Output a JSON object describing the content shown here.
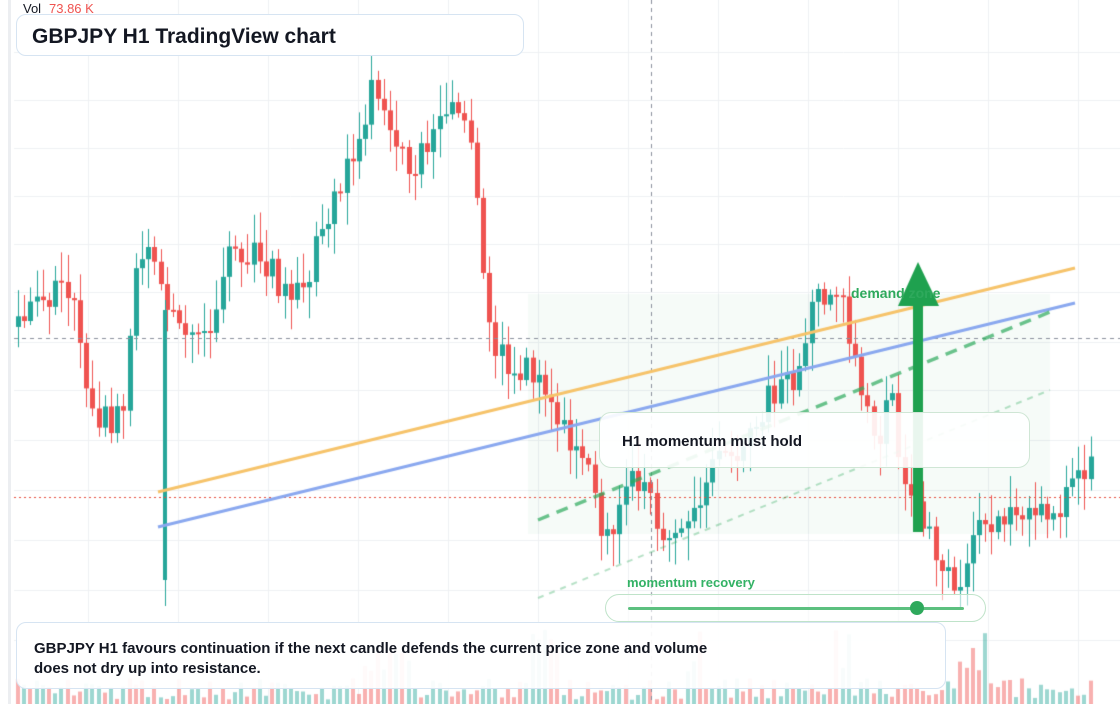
{
  "app": "TradingView",
  "chart": {
    "title": "GBPJPY H1 TradingView chart",
    "volume_label": "Vol",
    "volume_value": "73.86 K"
  },
  "annotations": {
    "demand_zone": "demand zone",
    "momentum_hold": "H1 momentum must hold",
    "momentum_recovery": "momentum recovery",
    "momentum_recovery_level": 0.86,
    "note": "GBPJPY H1 favours continuation if the next candle defends the current price zone and volume does not dry up into resistance."
  },
  "colors": {
    "bull": "#26a69a",
    "bear": "#ef5350",
    "upper_trendline": "#f6c36a",
    "lower_trendline": "#8aa8ef",
    "demand_green": "#2ea95c",
    "crosshair": "#8a8f9c",
    "current_price_line": "#e74c3c"
  },
  "icons": {
    "target_arrow": "up-arrow-icon"
  }
}
